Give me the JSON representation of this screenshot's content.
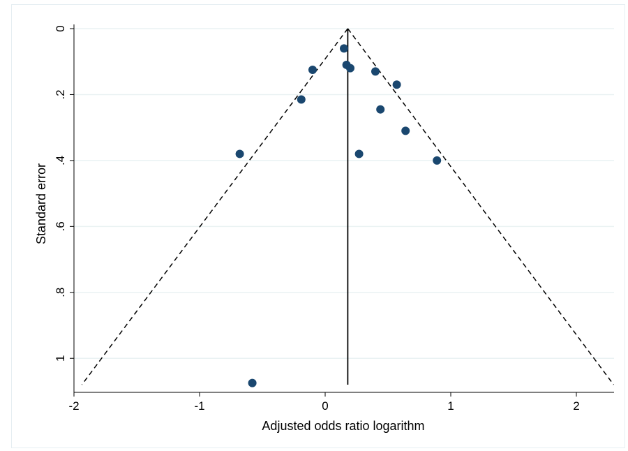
{
  "chart_data": {
    "type": "scatter",
    "title": "",
    "xlabel": "Adjusted odds ratio logarithm",
    "ylabel": "Standard error",
    "xlim": [
      -2,
      2.3
    ],
    "ylim": [
      0,
      1.08
    ],
    "y_reversed": true,
    "x_ticks": [
      -2,
      -1,
      0,
      1,
      2
    ],
    "x_tick_labels": [
      "-2",
      "-1",
      "0",
      "1",
      "2"
    ],
    "y_ticks": [
      0,
      0.2,
      0.4,
      0.6,
      0.8,
      1
    ],
    "y_tick_labels": [
      "0",
      ".2",
      ".4",
      ".6",
      ".8",
      "1"
    ],
    "grid": "horizontal",
    "pooled_estimate": 0.18,
    "funnel_se_max": 1.08,
    "points": [
      {
        "x": 0.15,
        "y": 0.06
      },
      {
        "x": 0.17,
        "y": 0.11
      },
      {
        "x": 0.2,
        "y": 0.12
      },
      {
        "x": -0.1,
        "y": 0.125
      },
      {
        "x": 0.4,
        "y": 0.13
      },
      {
        "x": 0.57,
        "y": 0.17
      },
      {
        "x": -0.19,
        "y": 0.215
      },
      {
        "x": 0.44,
        "y": 0.245
      },
      {
        "x": 0.64,
        "y": 0.31
      },
      {
        "x": -0.68,
        "y": 0.38
      },
      {
        "x": 0.27,
        "y": 0.38
      },
      {
        "x": 0.89,
        "y": 0.4
      },
      {
        "x": -0.58,
        "y": 1.075
      }
    ],
    "colors": {
      "point": "#1a476f",
      "grid": "#eaf2f3",
      "line": "#000000"
    }
  }
}
